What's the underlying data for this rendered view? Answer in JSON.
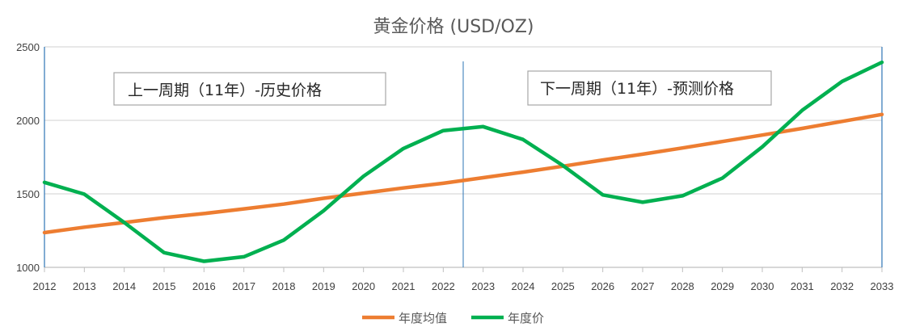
{
  "chart_data": {
    "type": "line",
    "title": "黄金价格 (USD/OZ)",
    "xlabel": "",
    "ylabel": "",
    "ylim": [
      1000,
      2500
    ],
    "yticks": [
      1000,
      1500,
      2000,
      2500
    ],
    "grid": true,
    "legend_position": "bottom",
    "categories": [
      "2012",
      "2013",
      "2014",
      "2015",
      "2016",
      "2017",
      "2018",
      "2019",
      "2020",
      "2021",
      "2022",
      "2023",
      "2024",
      "2025",
      "2026",
      "2027",
      "2028",
      "2029",
      "2030",
      "2031",
      "2032",
      "2033"
    ],
    "series": [
      {
        "name": "年度均值",
        "color": "#ED7D31",
        "values": [
          1236,
          1273,
          1305,
          1338,
          1366,
          1398,
          1430,
          1470,
          1505,
          1540,
          1572,
          1610,
          1648,
          1688,
          1730,
          1770,
          1812,
          1856,
          1900,
          1945,
          1993,
          2040
        ]
      },
      {
        "name": "年度价",
        "color": "#00B050",
        "values": [
          1578,
          1498,
          1305,
          1100,
          1041,
          1072,
          1185,
          1385,
          1620,
          1808,
          1930,
          1957,
          1870,
          1693,
          1493,
          1443,
          1487,
          1607,
          1820,
          2068,
          2265,
          2395
        ]
      }
    ],
    "divider_after_category": "2022",
    "annotations": [
      {
        "text": "上一周期（11年）-历史价格"
      },
      {
        "text": "下一周期（11年）-预测价格"
      }
    ]
  }
}
